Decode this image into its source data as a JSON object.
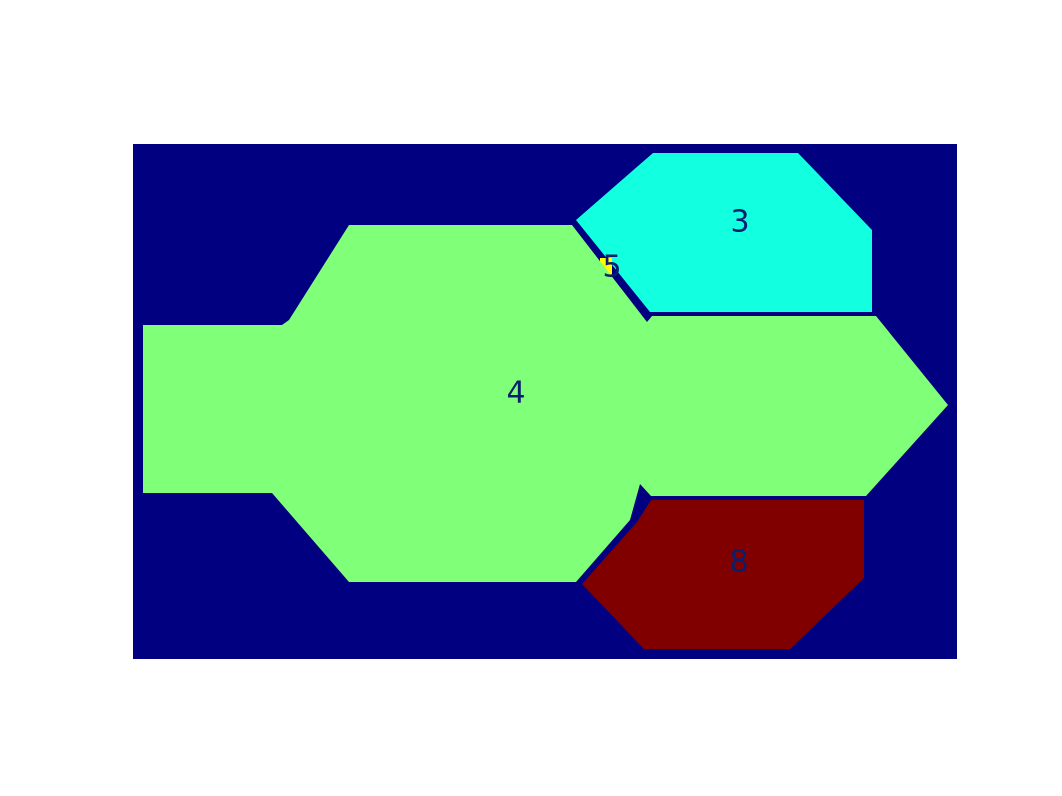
{
  "colors": {
    "page_background": "#ffffff",
    "background_region": "#000080",
    "region_3": "#12ffe0",
    "region_4": "#80ff78",
    "region_5": "#ffff00",
    "region_8": "#800000",
    "label_text": "#0a1e6e"
  },
  "regions": [
    {
      "id": "3",
      "label": "3",
      "color_key": "region_3"
    },
    {
      "id": "4",
      "label": "4",
      "color_key": "region_4"
    },
    {
      "id": "5",
      "label": "5",
      "color_key": "region_5"
    },
    {
      "id": "8",
      "label": "8",
      "color_key": "region_8"
    }
  ]
}
